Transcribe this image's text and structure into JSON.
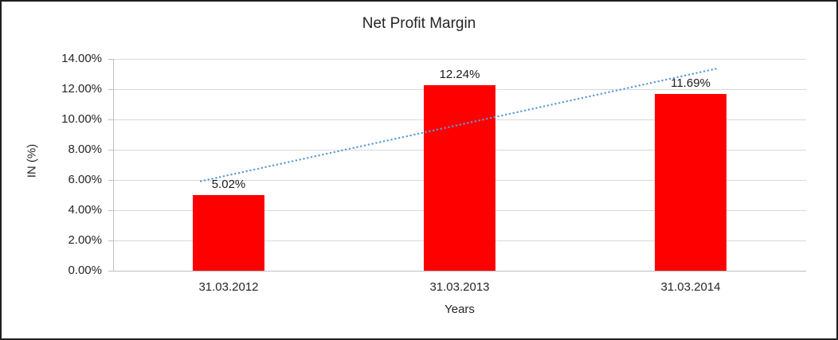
{
  "chart_data": {
    "type": "bar",
    "title": "Net Profit Margin",
    "xlabel": "Years",
    "ylabel": "IN (%)",
    "categories": [
      "31.03.2012",
      "31.03.2013",
      "31.03.2014"
    ],
    "values": [
      5.02,
      12.24,
      11.69
    ],
    "data_labels": [
      "5.02%",
      "12.24%",
      "11.69%"
    ],
    "y_ticks": [
      "14.00%",
      "12.00%",
      "10.00%",
      "8.00%",
      "6.00%",
      "4.00%",
      "2.00%",
      "0.00%"
    ],
    "ylim": [
      0,
      14
    ],
    "y_tick_step": 2,
    "grid": true,
    "legend": "none",
    "bar_color": "#FF0000",
    "gridline_color": "#D9D9D9",
    "axis_color": "#BFBFBF",
    "text_color": "#262626",
    "trendline": {
      "type": "linear",
      "style": "dotted",
      "color": "#5B9BD5"
    }
  }
}
